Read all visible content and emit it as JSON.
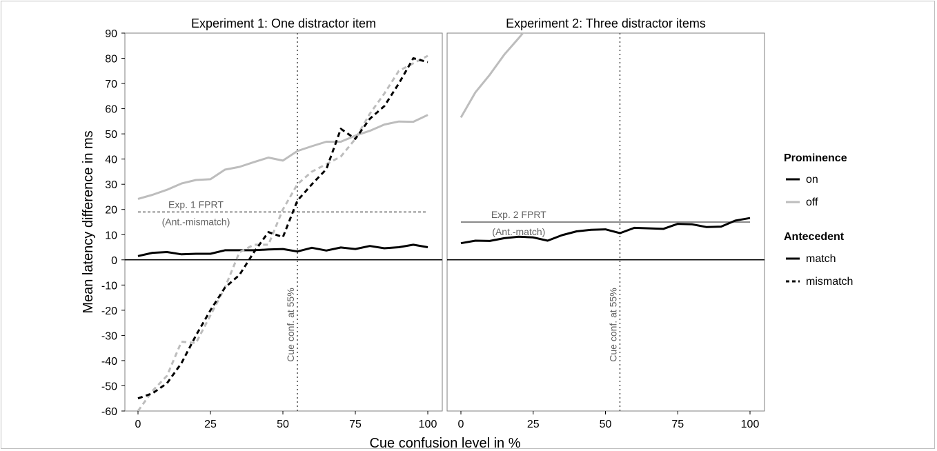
{
  "chart_data": {
    "type": "line",
    "ylabel": "Mean latency difference in ms",
    "xlabel": "Cue confusion level in %",
    "ylim": [
      -60,
      90
    ],
    "xlim": [
      0,
      100
    ],
    "yticks": [
      "90",
      "80",
      "70",
      "60",
      "50",
      "40",
      "30",
      "20",
      "10",
      "0",
      "-10",
      "-20",
      "-30",
      "-40",
      "-50",
      "-60"
    ],
    "xticks": [
      "0",
      "25",
      "50",
      "75",
      "100"
    ],
    "grid": false,
    "x": [
      0,
      5,
      10,
      15,
      20,
      25,
      30,
      35,
      40,
      45,
      50,
      55,
      60,
      65,
      70,
      75,
      80,
      85,
      90,
      95,
      100
    ],
    "panels": [
      {
        "title": "Experiment 1: One distractor item",
        "vline_label": "Cue conf. at 55%",
        "hline": {
          "value": 19,
          "style": "dashed",
          "label_line1": "Exp. 1 FPRT",
          "label_line2": "(Ant.-mismatch)"
        },
        "series": [
          {
            "prominence": "off",
            "antecedent": "match",
            "values": [
              24.2,
              25.8,
              27.8,
              30.3,
              31.7,
              32,
              35.8,
              36.9,
              38.8,
              40.6,
              39.4,
              43.2,
              45.1,
              46.9,
              46.9,
              49.3,
              51.2,
              53.7,
              54.9,
              54.8,
              57.5
            ]
          },
          {
            "prominence": "on",
            "antecedent": "match",
            "values": [
              1.5,
              2.8,
              3.1,
              2.2,
              2.4,
              2.4,
              3.8,
              3.8,
              3.8,
              4.1,
              4.3,
              3.3,
              4.8,
              3.7,
              4.9,
              4.3,
              5.5,
              4.6,
              5,
              6,
              5
            ]
          },
          {
            "prominence": "off",
            "antecedent": "mismatch",
            "values": [
              -60,
              -52,
              -46,
              -32.5,
              -33,
              -22,
              -11,
              3,
              6,
              6,
              20,
              30,
              35,
              38,
              41,
              48,
              58,
              66,
              75,
              78,
              81
            ]
          },
          {
            "prominence": "on",
            "antecedent": "mismatch",
            "values": [
              -55,
              -53,
              -49,
              -41,
              -30,
              -20,
              -11,
              -6,
              3,
              11,
              9,
              23.5,
              30,
              36,
              52,
              48,
              56,
              61,
              70,
              80,
              78.5
            ]
          }
        ]
      },
      {
        "title": "Experiment 2: Three distractor items",
        "vline_label": "Cue conf. at 55%",
        "hline": {
          "value": 15,
          "style": "solid",
          "label_line1": "Exp. 2 FPRT",
          "label_line2": "(Ant.-match)"
        },
        "series": [
          {
            "prominence": "off",
            "antecedent": "match",
            "values": [
              56.5,
              66.5,
              73.5,
              81.5,
              88,
              95,
              null,
              null,
              null,
              null,
              null,
              null,
              null,
              null,
              null,
              null,
              null,
              null,
              null,
              null,
              null
            ]
          },
          {
            "prominence": "on",
            "antecedent": "match",
            "values": [
              6.6,
              7.6,
              7.5,
              8.6,
              9.2,
              8.9,
              7.6,
              9.8,
              11.3,
              11.9,
              12.1,
              10.6,
              12.7,
              12.5,
              12.3,
              14.3,
              14.1,
              13,
              13.2,
              15.6,
              16.6
            ]
          }
        ]
      }
    ],
    "legend": {
      "placement": "right",
      "prominence_title": "Prominence",
      "prominence_items": [
        "on",
        "off"
      ],
      "antecedent_title": "Antecedent",
      "antecedent_items": [
        "match",
        "mismatch"
      ]
    },
    "colors": {
      "on": "#000000",
      "off": "#bdbdbd",
      "refline": "#636363",
      "axis": "#000000"
    }
  }
}
